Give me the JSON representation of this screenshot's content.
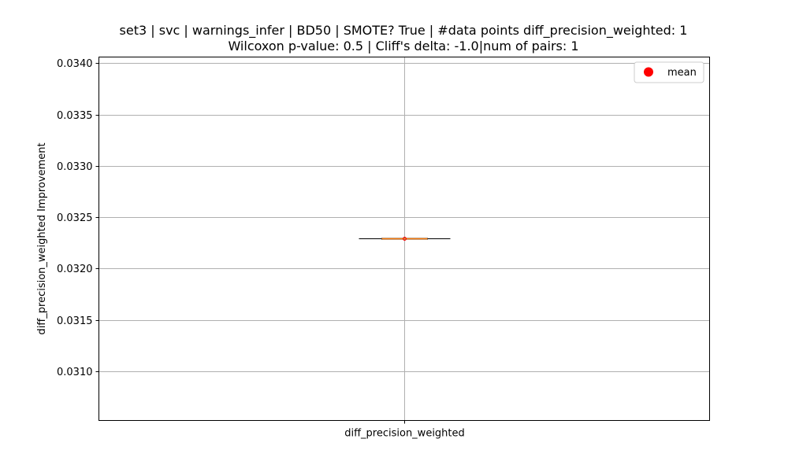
{
  "chart_data": {
    "type": "box",
    "title": [
      "set3 | svc | warnings_infer | BD50 | SMOTE? True | #data points diff_precision_weighted: 1",
      "Wilcoxon p-value: 0.5 | Cliff's delta: -1.0|num of pairs: 1"
    ],
    "xlabel": "",
    "ylabel": "diff_precision_weighted Improvement",
    "categories": [
      "diff_precision_weighted"
    ],
    "yticks": [
      0.031,
      0.0315,
      0.032,
      0.0325,
      0.033,
      0.0335,
      0.034
    ],
    "ytick_labels": [
      "0.0310",
      "0.0315",
      "0.0320",
      "0.0325",
      "0.0330",
      "0.0335",
      "0.0340"
    ],
    "ylim": [
      0.03052,
      0.03406
    ],
    "grid": true,
    "series": [
      {
        "name": "diff_precision_weighted",
        "values": [
          0.03229
        ],
        "median": 0.03229,
        "q1": 0.03229,
        "q3": 0.03229,
        "whisker_low": 0.03229,
        "whisker_high": 0.03229,
        "mean": 0.03229
      }
    ],
    "legend": {
      "entries": [
        "mean"
      ],
      "placement": "top-right"
    },
    "colors": {
      "box": "#000000",
      "median": "#ff7f0e",
      "mean": "#ff0000",
      "grid": "#b0b0b0"
    }
  }
}
